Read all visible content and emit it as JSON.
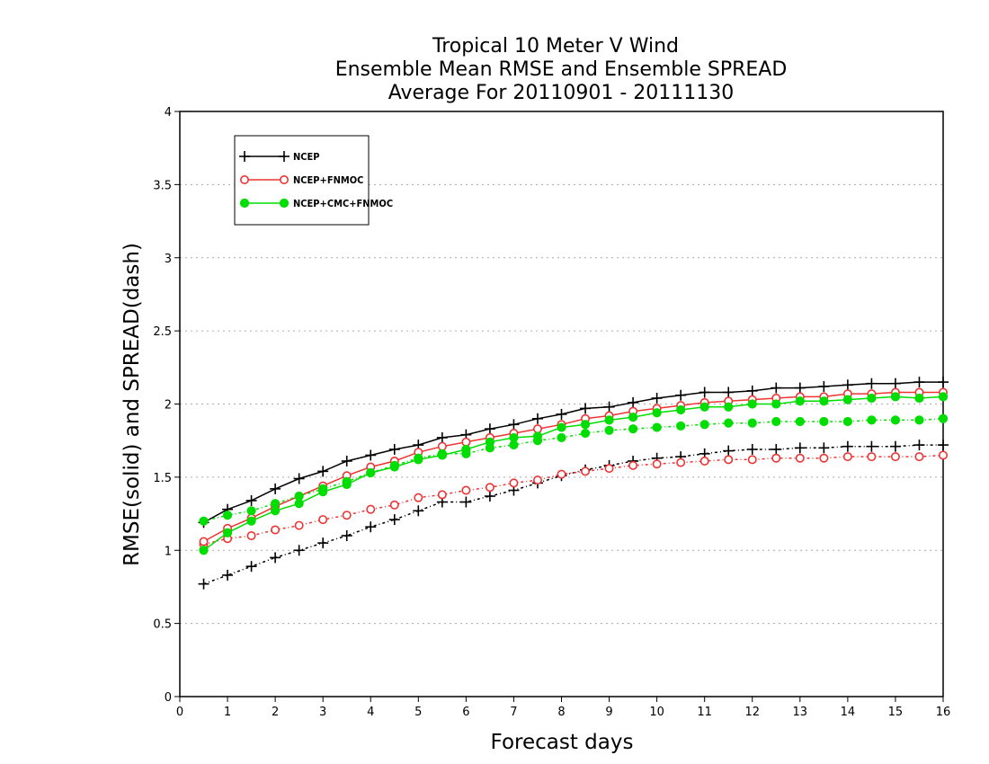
{
  "chart_data": {
    "type": "line",
    "title": [
      "Tropical 10 Meter V Wind",
      "Ensemble Mean RMSE and Ensemble SPREAD",
      "Average For 20110901 - 20111130"
    ],
    "xlabel": "Forecast days",
    "ylabel": "RMSE(solid) and SPREAD(dash)",
    "xlim": [
      0,
      16
    ],
    "ylim": [
      0,
      4
    ],
    "xticks": [
      0,
      1,
      2,
      3,
      4,
      5,
      6,
      7,
      8,
      9,
      10,
      11,
      12,
      13,
      14,
      15,
      16
    ],
    "yticks": [
      0,
      0.5,
      1,
      1.5,
      2,
      2.5,
      3,
      3.5,
      4
    ],
    "ytick_labels": [
      "0",
      "0.5",
      "1",
      "1.5",
      "2",
      "2.5",
      "3",
      "3.5",
      "4"
    ],
    "grid": "horizontal dotted",
    "legend_position": "top-left",
    "x": [
      0.5,
      1,
      1.5,
      2,
      2.5,
      3,
      3.5,
      4,
      4.5,
      5,
      5.5,
      6,
      6.5,
      7,
      7.5,
      8,
      8.5,
      9,
      9.5,
      10,
      10.5,
      11,
      11.5,
      12,
      12.5,
      13,
      13.5,
      14,
      14.5,
      15,
      15.5,
      16
    ],
    "series": [
      {
        "name": "NCEP",
        "color": "#000000",
        "marker": "plus",
        "rmse": [
          1.19,
          1.28,
          1.34,
          1.42,
          1.49,
          1.54,
          1.61,
          1.65,
          1.69,
          1.72,
          1.77,
          1.79,
          1.83,
          1.86,
          1.9,
          1.93,
          1.97,
          1.98,
          2.01,
          2.04,
          2.06,
          2.08,
          2.08,
          2.09,
          2.11,
          2.11,
          2.12,
          2.13,
          2.14,
          2.14,
          2.15,
          2.15
        ],
        "spread": [
          0.77,
          0.83,
          0.89,
          0.95,
          1.0,
          1.05,
          1.1,
          1.16,
          1.21,
          1.27,
          1.33,
          1.33,
          1.37,
          1.41,
          1.46,
          1.51,
          1.55,
          1.58,
          1.61,
          1.63,
          1.64,
          1.66,
          1.68,
          1.69,
          1.69,
          1.7,
          1.7,
          1.71,
          1.71,
          1.71,
          1.72,
          1.72
        ]
      },
      {
        "name": "NCEP+FNMOC",
        "color": "#ee3333",
        "marker": "open-circle",
        "rmse": [
          1.06,
          1.15,
          1.22,
          1.3,
          1.37,
          1.44,
          1.51,
          1.57,
          1.61,
          1.67,
          1.71,
          1.74,
          1.77,
          1.8,
          1.83,
          1.86,
          1.9,
          1.92,
          1.95,
          1.97,
          1.99,
          2.01,
          2.02,
          2.03,
          2.04,
          2.05,
          2.05,
          2.07,
          2.07,
          2.08,
          2.08,
          2.08
        ],
        "spread": [
          1.04,
          1.08,
          1.1,
          1.14,
          1.17,
          1.21,
          1.24,
          1.28,
          1.31,
          1.36,
          1.38,
          1.41,
          1.43,
          1.46,
          1.48,
          1.52,
          1.54,
          1.56,
          1.58,
          1.59,
          1.6,
          1.61,
          1.62,
          1.62,
          1.63,
          1.63,
          1.63,
          1.64,
          1.64,
          1.64,
          1.64,
          1.65
        ]
      },
      {
        "name": "NCEP+CMC+FNMOC",
        "color": "#00dd00",
        "marker": "filled-circle",
        "rmse": [
          1.0,
          1.12,
          1.2,
          1.27,
          1.32,
          1.4,
          1.45,
          1.53,
          1.57,
          1.62,
          1.65,
          1.69,
          1.74,
          1.77,
          1.78,
          1.84,
          1.86,
          1.89,
          1.91,
          1.94,
          1.96,
          1.98,
          1.98,
          2.0,
          2.0,
          2.02,
          2.02,
          2.03,
          2.04,
          2.05,
          2.04,
          2.05
        ],
        "spread": [
          1.2,
          1.24,
          1.27,
          1.32,
          1.37,
          1.42,
          1.47,
          1.53,
          1.58,
          1.63,
          1.66,
          1.66,
          1.7,
          1.72,
          1.75,
          1.77,
          1.8,
          1.82,
          1.83,
          1.84,
          1.85,
          1.86,
          1.87,
          1.87,
          1.88,
          1.88,
          1.88,
          1.88,
          1.89,
          1.89,
          1.89,
          1.9
        ]
      }
    ]
  }
}
